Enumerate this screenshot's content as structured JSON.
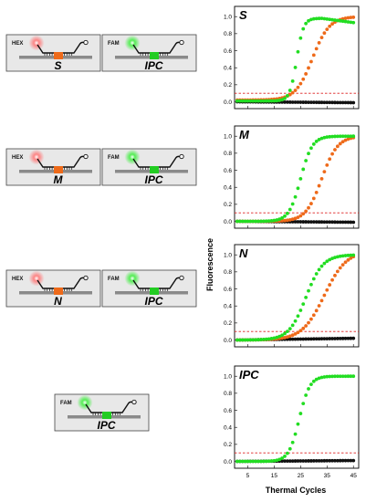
{
  "xlabel": "Thermal Cycles",
  "ylabel": "Fluorescence",
  "x_ticks": [
    "5",
    "15",
    "25",
    "35",
    "45"
  ],
  "y_ticks": [
    "0.0",
    "0.2",
    "0.4",
    "0.6",
    "0.8",
    "1.0"
  ],
  "colors": {
    "green": "#22dd22",
    "orange": "#ee6a1a",
    "black": "#111111",
    "threshold": "#dd2222"
  },
  "diagram_rows": [
    {
      "boxes": [
        {
          "dye": "HEX",
          "target": "S",
          "glow": "#ff7a7a",
          "center": "#ee6a1a"
        },
        {
          "dye": "FAM",
          "target": "IPC",
          "glow": "#44ee44",
          "center": "#22cc22"
        }
      ]
    },
    {
      "boxes": [
        {
          "dye": "HEX",
          "target": "M",
          "glow": "#ff7a7a",
          "center": "#ee6a1a"
        },
        {
          "dye": "FAM",
          "target": "IPC",
          "glow": "#44ee44",
          "center": "#22cc22"
        }
      ]
    },
    {
      "boxes": [
        {
          "dye": "HEX",
          "target": "N",
          "glow": "#ff7a7a",
          "center": "#ee6a1a"
        },
        {
          "dye": "FAM",
          "target": "IPC",
          "glow": "#44ee44",
          "center": "#22cc22"
        }
      ]
    },
    {
      "boxes": [
        {
          "dye": "FAM",
          "target": "IPC",
          "glow": "#44ee44",
          "center": "#22cc22"
        }
      ]
    }
  ],
  "chart_data": [
    {
      "type": "scatter",
      "title": "S",
      "xlim": [
        0,
        47
      ],
      "ylim": [
        -0.08,
        1.12
      ],
      "threshold": 0.1,
      "series": [
        {
          "color": "green",
          "curve": {
            "baseline": 0.01,
            "top": 0.98,
            "midpoint": 23.5,
            "slope": 1.3,
            "peak_cycle": 33,
            "end_value": 0.93
          }
        },
        {
          "color": "orange",
          "curve": {
            "baseline": 0.02,
            "top": 1.0,
            "midpoint": 29.5,
            "slope": 3.2,
            "peak_cycle": 45,
            "end_value": 1.0
          }
        },
        {
          "color": "black",
          "curve": {
            "baseline": 0.0,
            "end_value": -0.01
          }
        }
      ]
    },
    {
      "type": "scatter",
      "title": "M",
      "xlim": [
        0,
        47
      ],
      "ylim": [
        -0.08,
        1.12
      ],
      "threshold": 0.1,
      "series": [
        {
          "color": "green",
          "curve": {
            "baseline": 0.0,
            "top": 1.0,
            "midpoint": 25,
            "slope": 2.2
          }
        },
        {
          "color": "orange",
          "curve": {
            "baseline": 0.0,
            "top": 1.0,
            "midpoint": 33,
            "slope": 3.0
          }
        },
        {
          "color": "black",
          "curve": {
            "baseline": 0.0,
            "end_value": -0.01
          }
        }
      ]
    },
    {
      "type": "scatter",
      "title": "N",
      "xlim": [
        0,
        47
      ],
      "ylim": [
        -0.08,
        1.12
      ],
      "threshold": 0.1,
      "series": [
        {
          "color": "green",
          "curve": {
            "baseline": 0.0,
            "top": 1.0,
            "midpoint": 27,
            "slope": 3.2
          }
        },
        {
          "color": "orange",
          "curve": {
            "baseline": 0.0,
            "top": 1.05,
            "midpoint": 34,
            "slope": 4.2
          }
        },
        {
          "color": "black",
          "curve": {
            "baseline": 0.0,
            "end_value": 0.02
          }
        }
      ]
    },
    {
      "type": "scatter",
      "title": "IPC",
      "xlim": [
        0,
        47
      ],
      "ylim": [
        -0.08,
        1.12
      ],
      "threshold": 0.1,
      "series": [
        {
          "color": "green",
          "curve": {
            "baseline": 0.0,
            "top": 1.0,
            "midpoint": 24.5,
            "slope": 2.0
          }
        },
        {
          "color": "black",
          "curve": {
            "baseline": 0.0,
            "end_value": 0.01
          }
        }
      ]
    }
  ]
}
